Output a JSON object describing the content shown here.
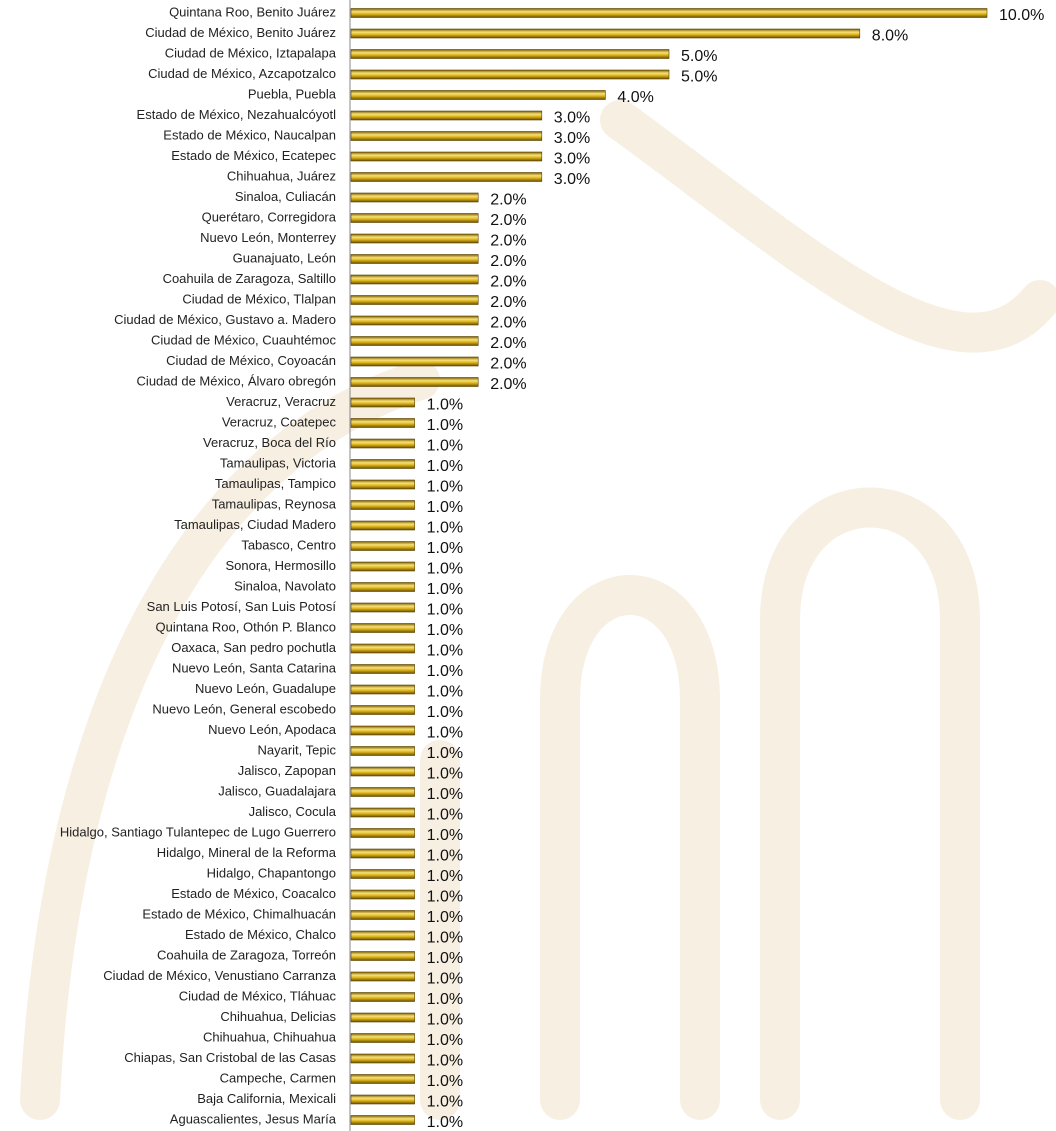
{
  "chart_data": {
    "type": "bar",
    "orientation": "horizontal",
    "categories": [
      "Quintana Roo, Benito Juárez",
      "Ciudad de México, Benito Juárez",
      "Ciudad de México, Iztapalapa",
      "Ciudad de México, Azcapotzalco",
      "Puebla, Puebla",
      "Estado de México, Nezahualcóyotl",
      "Estado de México, Naucalpan",
      "Estado de México, Ecatepec",
      "Chihuahua, Juárez",
      "Sinaloa, Culiacán",
      "Querétaro, Corregidora",
      "Nuevo León, Monterrey",
      "Guanajuato, León",
      "Coahuila de Zaragoza, Saltillo",
      "Ciudad de México, Tlalpan",
      "Ciudad de México, Gustavo a. Madero",
      "Ciudad de México, Cuauhtémoc",
      "Ciudad de México, Coyoacán",
      "Ciudad de México, Álvaro obregón",
      "Veracruz, Veracruz",
      "Veracruz, Coatepec",
      "Veracruz, Boca del Río",
      "Tamaulipas, Victoria",
      "Tamaulipas, Tampico",
      "Tamaulipas, Reynosa",
      "Tamaulipas, Ciudad Madero",
      "Tabasco, Centro",
      "Sonora, Hermosillo",
      "Sinaloa, Navolato",
      "San Luis Potosí, San Luis Potosí",
      "Quintana Roo, Othón P. Blanco",
      "Oaxaca, San pedro pochutla",
      "Nuevo León, Santa Catarina",
      "Nuevo León, Guadalupe",
      "Nuevo León, General escobedo",
      "Nuevo León, Apodaca",
      "Nayarit, Tepic",
      "Jalisco, Zapopan",
      "Jalisco, Guadalajara",
      "Jalisco, Cocula",
      "Hidalgo, Santiago Tulantepec de Lugo Guerrero",
      "Hidalgo, Mineral de la Reforma",
      "Hidalgo, Chapantongo",
      "Estado de México, Coacalco",
      "Estado de México, Chimalhuacán",
      "Estado de México, Chalco",
      "Coahuila de Zaragoza, Torreón",
      "Ciudad de México, Venustiano Carranza",
      "Ciudad de México, Tláhuac",
      "Chihuahua, Delicias",
      "Chihuahua, Chihuahua",
      "Chiapas, San Cristobal de las Casas",
      "Campeche, Carmen",
      "Baja California, Mexicali",
      "Aguascalientes, Jesus María"
    ],
    "values": [
      10,
      8,
      5,
      5,
      4,
      3,
      3,
      3,
      3,
      2,
      2,
      2,
      2,
      2,
      2,
      2,
      2,
      2,
      2,
      1,
      1,
      1,
      1,
      1,
      1,
      1,
      1,
      1,
      1,
      1,
      1,
      1,
      1,
      1,
      1,
      1,
      1,
      1,
      1,
      1,
      1,
      1,
      1,
      1,
      1,
      1,
      1,
      1,
      1,
      1,
      1,
      1,
      1,
      1,
      1
    ],
    "value_labels": [
      "10.0%",
      "8.0%",
      "5.0%",
      "5.0%",
      "4.0%",
      "3.0%",
      "3.0%",
      "3.0%",
      "3.0%",
      "2.0%",
      "2.0%",
      "2.0%",
      "2.0%",
      "2.0%",
      "2.0%",
      "2.0%",
      "2.0%",
      "2.0%",
      "2.0%",
      "1.0%",
      "1.0%",
      "1.0%",
      "1.0%",
      "1.0%",
      "1.0%",
      "1.0%",
      "1.0%",
      "1.0%",
      "1.0%",
      "1.0%",
      "1.0%",
      "1.0%",
      "1.0%",
      "1.0%",
      "1.0%",
      "1.0%",
      "1.0%",
      "1.0%",
      "1.0%",
      "1.0%",
      "1.0%",
      "1.0%",
      "1.0%",
      "1.0%",
      "1.0%",
      "1.0%",
      "1.0%",
      "1.0%",
      "1.0%",
      "1.0%",
      "1.0%",
      "1.0%",
      "1.0%",
      "1.0%",
      "1.0%"
    ],
    "xlim": [
      0,
      10
    ],
    "color": "#e0b81c"
  }
}
